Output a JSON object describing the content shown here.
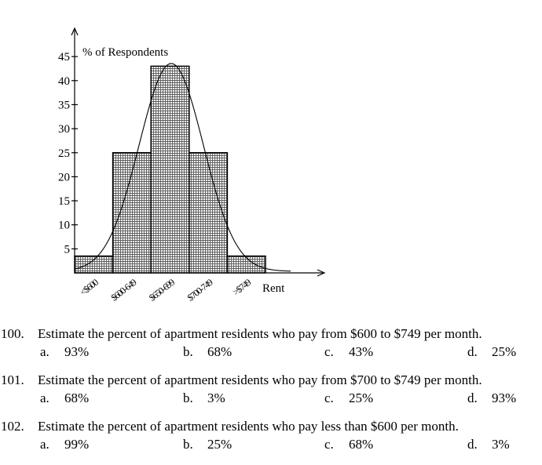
{
  "chart_data": {
    "type": "bar",
    "categories": [
      "<$600",
      "$600-649",
      "$650-699",
      "$700-749",
      ">$749"
    ],
    "values": [
      3.5,
      25,
      43,
      25,
      3.5
    ],
    "ylabel": "% of Respondents",
    "xlabel": "Rent",
    "yticks": [
      5,
      10,
      15,
      20,
      25,
      30,
      35,
      40,
      45
    ],
    "ylim": [
      0,
      50
    ],
    "overlay": "normal-curve",
    "bar_fill": "crosshatch",
    "grid": false,
    "legend": "none"
  },
  "questions": [
    {
      "number": "100.",
      "text": "Estimate the percent of apartment residents who pay from $600 to $749 per month.",
      "choices": [
        {
          "letter": "a.",
          "value": "93%"
        },
        {
          "letter": "b.",
          "value": "68%"
        },
        {
          "letter": "c.",
          "value": "43%"
        },
        {
          "letter": "d.",
          "value": "25%"
        }
      ]
    },
    {
      "number": "101.",
      "text": "Estimate the percent of apartment residents who pay from $700 to $749 per month.",
      "choices": [
        {
          "letter": "a.",
          "value": "68%"
        },
        {
          "letter": "b.",
          "value": "3%"
        },
        {
          "letter": "c.",
          "value": "25%"
        },
        {
          "letter": "d.",
          "value": "93%"
        }
      ]
    },
    {
      "number": "102.",
      "text": "Estimate the percent of apartment residents who pay less than $600 per month.",
      "choices": [
        {
          "letter": "a.",
          "value": "99%"
        },
        {
          "letter": "b.",
          "value": "25%"
        },
        {
          "letter": "c.",
          "value": "68%"
        },
        {
          "letter": "d.",
          "value": "3%"
        }
      ]
    }
  ]
}
